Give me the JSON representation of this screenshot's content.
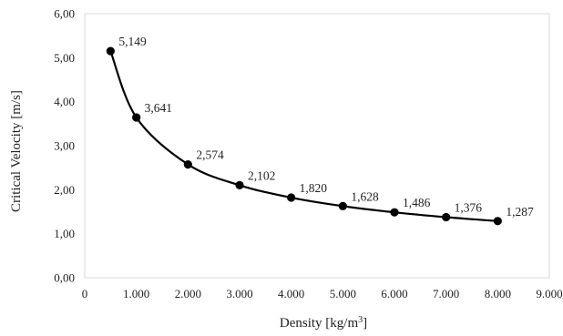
{
  "chart_data": {
    "type": "scatter",
    "title": "",
    "xlabel": "Density [kg/m",
    "xlabel_sup": "3",
    "xlabel_end": "]",
    "ylabel": "Critical Velocity [m/s]",
    "xlim": [
      0,
      9000
    ],
    "ylim": [
      0,
      6
    ],
    "x_ticks": [
      "0",
      "1.000",
      "2.000",
      "3.000",
      "4.000",
      "5.000",
      "6.000",
      "7.000",
      "8.000",
      "9.000"
    ],
    "y_ticks": [
      "0,00",
      "1,00",
      "2,00",
      "3,00",
      "4,00",
      "5,00",
      "6,00"
    ],
    "x_tick_values": [
      0,
      1000,
      2000,
      3000,
      4000,
      5000,
      6000,
      7000,
      8000,
      9000
    ],
    "y_tick_values": [
      0,
      1,
      2,
      3,
      4,
      5,
      6
    ],
    "grid": false,
    "smooth_line": true,
    "marker_color": "#000000",
    "line_color": "#000000",
    "points": [
      {
        "x": 500,
        "y": 5.149,
        "label": "5,149"
      },
      {
        "x": 1000,
        "y": 3.641,
        "label": "3,641"
      },
      {
        "x": 2000,
        "y": 2.574,
        "label": "2,574"
      },
      {
        "x": 3000,
        "y": 2.102,
        "label": "2,102"
      },
      {
        "x": 4000,
        "y": 1.82,
        "label": "1,820"
      },
      {
        "x": 5000,
        "y": 1.628,
        "label": "1,628"
      },
      {
        "x": 6000,
        "y": 1.486,
        "label": "1,486"
      },
      {
        "x": 7000,
        "y": 1.376,
        "label": "1,376"
      },
      {
        "x": 8000,
        "y": 1.287,
        "label": "1,287"
      }
    ]
  }
}
